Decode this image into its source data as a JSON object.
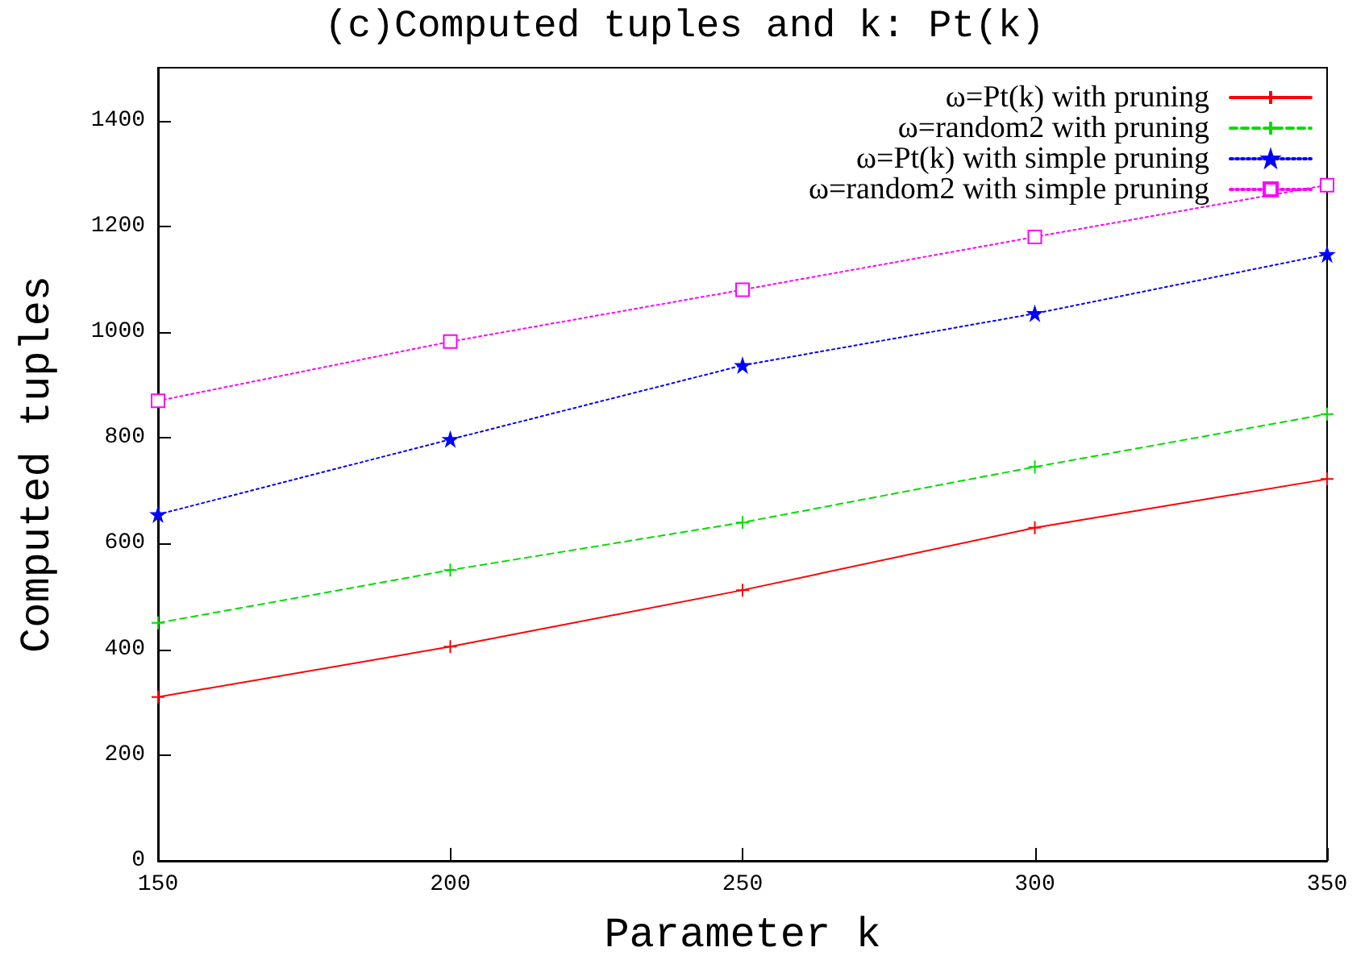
{
  "chart_data": {
    "type": "line",
    "title": "(c)Computed tuples and k: Pt(k)",
    "xlabel": "Parameter k",
    "ylabel": "Computed tuples",
    "x": [
      150,
      200,
      250,
      300,
      350
    ],
    "series": [
      {
        "name": "ω=Pt(k) with pruning",
        "color": "#ff0000",
        "marker": "cross",
        "line_style": "solid",
        "values": [
          310,
          405,
          512,
          630,
          722
        ]
      },
      {
        "name": "ω=random2 with pruning",
        "color": "#00dd00",
        "marker": "cross",
        "line_style": "dashed",
        "values": [
          450,
          550,
          640,
          745,
          845
        ]
      },
      {
        "name": "ω=Pt(k) with simple pruning",
        "color": "#0000ff",
        "marker": "star",
        "line_style": "dotted",
        "values": [
          655,
          797,
          937,
          1035,
          1147
        ]
      },
      {
        "name": "ω=random2 with simple pruning",
        "color": "#ff00ff",
        "marker": "square",
        "line_style": "dotted",
        "values": [
          870,
          982,
          1080,
          1180,
          1278
        ]
      }
    ],
    "xlim": [
      150,
      350
    ],
    "xticks": [
      150,
      200,
      250,
      300,
      350
    ],
    "ylim": [
      0,
      1500
    ],
    "yticks": [
      0,
      200,
      400,
      600,
      800,
      1000,
      1200,
      1400
    ],
    "grid": false,
    "legend": "top right"
  }
}
